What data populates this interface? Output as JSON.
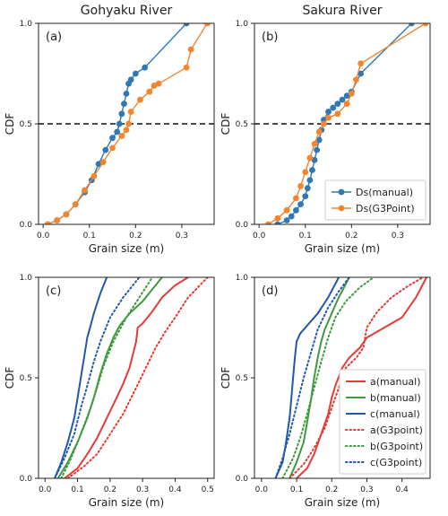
{
  "colors": {
    "blue": "#2f78b3",
    "orange": "#f28530",
    "red": "#e53b36",
    "green": "#3e9a3e",
    "navy": "#2257b0"
  },
  "chart_data": [
    {
      "id": "a",
      "type": "line",
      "panel_label": "(a)",
      "title": "Gohyaku River",
      "xlabel": "Grain size (m)",
      "ylabel": "CDF",
      "xlim": [
        -0.01,
        0.37
      ],
      "ylim": [
        0,
        1
      ],
      "xticks": [
        "0.0",
        "0.1",
        "0.2",
        "0.3"
      ],
      "xtick_values": [
        0,
        0.1,
        0.2,
        0.3
      ],
      "yticks": [
        "0.0",
        "0.5",
        "1.0"
      ],
      "ytick_values": [
        0,
        0.5,
        1
      ],
      "hline": 0.5,
      "legend": "",
      "series": [
        {
          "name": "Ds(manual)",
          "color": "blue",
          "dash": "solid",
          "marker": true,
          "x": [
            0.01,
            0.03,
            0.05,
            0.07,
            0.09,
            0.105,
            0.12,
            0.135,
            0.15,
            0.16,
            0.165,
            0.17,
            0.175,
            0.18,
            0.185,
            0.19,
            0.2,
            0.22,
            0.31
          ],
          "y": [
            0.0,
            0.02,
            0.05,
            0.1,
            0.16,
            0.22,
            0.3,
            0.37,
            0.43,
            0.46,
            0.5,
            0.55,
            0.6,
            0.65,
            0.7,
            0.72,
            0.75,
            0.78,
            1.0
          ]
        },
        {
          "name": "Ds(G3Point)",
          "color": "orange",
          "dash": "solid",
          "marker": true,
          "x": [
            0.01,
            0.03,
            0.05,
            0.07,
            0.09,
            0.11,
            0.13,
            0.15,
            0.17,
            0.18,
            0.185,
            0.19,
            0.21,
            0.23,
            0.24,
            0.25,
            0.31,
            0.32,
            0.355
          ],
          "y": [
            0.0,
            0.02,
            0.05,
            0.1,
            0.17,
            0.24,
            0.31,
            0.38,
            0.44,
            0.47,
            0.5,
            0.56,
            0.62,
            0.66,
            0.69,
            0.7,
            0.78,
            0.87,
            1.0
          ]
        }
      ]
    },
    {
      "id": "b",
      "type": "line",
      "panel_label": "(b)",
      "title": "Sakura River",
      "xlabel": "Grain size (m)",
      "ylabel": "CDF",
      "xlim": [
        -0.01,
        0.37
      ],
      "ylim": [
        0,
        1
      ],
      "xticks": [
        "0.0",
        "0.1",
        "0.2",
        "0.3"
      ],
      "xtick_values": [
        0,
        0.1,
        0.2,
        0.3
      ],
      "yticks": [
        "0.0",
        "0.5",
        "1.0"
      ],
      "ytick_values": [
        0,
        0.5,
        1
      ],
      "hline": 0.5,
      "legend": "lower right",
      "series": [
        {
          "name": "Ds(manual)",
          "color": "blue",
          "dash": "solid",
          "marker": true,
          "x": [
            0.04,
            0.06,
            0.07,
            0.08,
            0.09,
            0.1,
            0.105,
            0.11,
            0.115,
            0.12,
            0.125,
            0.13,
            0.135,
            0.14,
            0.15,
            0.16,
            0.17,
            0.18,
            0.19,
            0.2,
            0.22,
            0.33
          ],
          "y": [
            0.0,
            0.02,
            0.04,
            0.07,
            0.1,
            0.14,
            0.18,
            0.22,
            0.27,
            0.32,
            0.37,
            0.42,
            0.47,
            0.52,
            0.56,
            0.58,
            0.6,
            0.62,
            0.64,
            0.66,
            0.75,
            1.0
          ]
        },
        {
          "name": "Ds(G3Point)",
          "color": "orange",
          "dash": "solid",
          "marker": true,
          "x": [
            0.02,
            0.04,
            0.06,
            0.08,
            0.09,
            0.1,
            0.11,
            0.12,
            0.13,
            0.14,
            0.15,
            0.17,
            0.19,
            0.2,
            0.21,
            0.22,
            0.36
          ],
          "y": [
            0.0,
            0.03,
            0.07,
            0.13,
            0.19,
            0.26,
            0.33,
            0.4,
            0.46,
            0.5,
            0.53,
            0.55,
            0.6,
            0.65,
            0.72,
            0.8,
            1.0
          ]
        }
      ]
    },
    {
      "id": "c",
      "type": "line",
      "panel_label": "(c)",
      "title": "",
      "xlabel": "Grain size (m)",
      "ylabel": "CDF",
      "xlim": [
        -0.02,
        0.52
      ],
      "ylim": [
        0,
        1
      ],
      "xticks": [
        "0.0",
        "0.1",
        "0.2",
        "0.3",
        "0.4",
        "0.5"
      ],
      "xtick_values": [
        0,
        0.1,
        0.2,
        0.3,
        0.4,
        0.5
      ],
      "yticks": [
        "0.0",
        "0.5",
        "1.0"
      ],
      "ytick_values": [
        0,
        0.5,
        1
      ],
      "hline": null,
      "legend": "",
      "series": [
        {
          "name": "a(manual)",
          "color": "red",
          "dash": "solid",
          "marker": false,
          "x": [
            0.06,
            0.1,
            0.13,
            0.16,
            0.19,
            0.22,
            0.24,
            0.26,
            0.28,
            0.285,
            0.3,
            0.33,
            0.36,
            0.4,
            0.44
          ],
          "y": [
            0.0,
            0.05,
            0.12,
            0.2,
            0.3,
            0.4,
            0.47,
            0.55,
            0.68,
            0.75,
            0.77,
            0.83,
            0.9,
            0.96,
            1.0
          ]
        },
        {
          "name": "b(manual)",
          "color": "green",
          "dash": "solid",
          "marker": false,
          "x": [
            0.04,
            0.07,
            0.1,
            0.13,
            0.15,
            0.17,
            0.19,
            0.21,
            0.23,
            0.26,
            0.3,
            0.33,
            0.36
          ],
          "y": [
            0.0,
            0.08,
            0.18,
            0.3,
            0.4,
            0.52,
            0.62,
            0.7,
            0.76,
            0.82,
            0.88,
            0.94,
            1.0
          ]
        },
        {
          "name": "c(manual)",
          "color": "navy",
          "dash": "solid",
          "marker": false,
          "x": [
            0.03,
            0.05,
            0.07,
            0.09,
            0.1,
            0.11,
            0.12,
            0.13,
            0.14,
            0.15,
            0.17,
            0.19
          ],
          "y": [
            0.0,
            0.08,
            0.18,
            0.3,
            0.4,
            0.5,
            0.6,
            0.7,
            0.76,
            0.82,
            0.92,
            1.0
          ]
        },
        {
          "name": "a(G3point)",
          "color": "red",
          "dash": "dotted",
          "marker": false,
          "x": [
            0.07,
            0.12,
            0.16,
            0.2,
            0.24,
            0.28,
            0.31,
            0.34,
            0.37,
            0.4,
            0.44,
            0.5
          ],
          "y": [
            0.0,
            0.06,
            0.12,
            0.22,
            0.32,
            0.45,
            0.55,
            0.65,
            0.73,
            0.8,
            0.9,
            1.0
          ]
        },
        {
          "name": "b(G3point)",
          "color": "green",
          "dash": "dotted",
          "marker": false,
          "x": [
            0.05,
            0.08,
            0.11,
            0.14,
            0.16,
            0.18,
            0.21,
            0.25,
            0.29,
            0.33
          ],
          "y": [
            0.0,
            0.1,
            0.22,
            0.35,
            0.45,
            0.56,
            0.68,
            0.8,
            0.9,
            1.0
          ]
        },
        {
          "name": "c(G3point)",
          "color": "navy",
          "dash": "dotted",
          "marker": false,
          "x": [
            0.03,
            0.06,
            0.09,
            0.11,
            0.13,
            0.15,
            0.17,
            0.2,
            0.24,
            0.29
          ],
          "y": [
            0.0,
            0.1,
            0.22,
            0.35,
            0.46,
            0.58,
            0.68,
            0.8,
            0.9,
            1.0
          ]
        }
      ]
    },
    {
      "id": "d",
      "type": "line",
      "panel_label": "(d)",
      "title": "",
      "xlabel": "Grain size (m)",
      "ylabel": "CDF",
      "xlim": [
        -0.02,
        0.48
      ],
      "ylim": [
        0,
        1
      ],
      "xticks": [
        "0.0",
        "0.1",
        "0.2",
        "0.3",
        "0.4"
      ],
      "xtick_values": [
        0,
        0.1,
        0.2,
        0.3,
        0.4
      ],
      "yticks": [
        "0.0",
        "0.5",
        "1.0"
      ],
      "ytick_values": [
        0,
        0.5,
        1
      ],
      "hline": null,
      "legend": "lower right",
      "series": [
        {
          "name": "a(manual)",
          "color": "red",
          "dash": "solid",
          "marker": false,
          "x": [
            0.1,
            0.13,
            0.15,
            0.17,
            0.19,
            0.2,
            0.21,
            0.23,
            0.25,
            0.28,
            0.3,
            0.35,
            0.4,
            0.44,
            0.47
          ],
          "y": [
            0.0,
            0.05,
            0.12,
            0.22,
            0.32,
            0.4,
            0.46,
            0.55,
            0.6,
            0.65,
            0.7,
            0.75,
            0.8,
            0.9,
            1.0
          ]
        },
        {
          "name": "b(manual)",
          "color": "green",
          "dash": "solid",
          "marker": false,
          "x": [
            0.08,
            0.1,
            0.12,
            0.13,
            0.14,
            0.15,
            0.16,
            0.17,
            0.18,
            0.2,
            0.22,
            0.25
          ],
          "y": [
            0.0,
            0.08,
            0.18,
            0.28,
            0.38,
            0.5,
            0.6,
            0.68,
            0.74,
            0.82,
            0.9,
            1.0
          ]
        },
        {
          "name": "c(manual)",
          "color": "navy",
          "dash": "solid",
          "marker": false,
          "x": [
            0.04,
            0.06,
            0.07,
            0.08,
            0.085,
            0.09,
            0.095,
            0.1,
            0.11,
            0.13,
            0.16,
            0.19,
            0.22
          ],
          "y": [
            0.0,
            0.08,
            0.18,
            0.3,
            0.4,
            0.5,
            0.6,
            0.68,
            0.72,
            0.76,
            0.82,
            0.9,
            1.0
          ]
        },
        {
          "name": "a(G3point)",
          "color": "red",
          "dash": "dotted",
          "marker": false,
          "x": [
            0.08,
            0.12,
            0.15,
            0.18,
            0.2,
            0.22,
            0.24,
            0.27,
            0.29,
            0.3,
            0.33,
            0.37,
            0.42,
            0.46
          ],
          "y": [
            0.0,
            0.07,
            0.15,
            0.25,
            0.35,
            0.45,
            0.55,
            0.6,
            0.65,
            0.75,
            0.83,
            0.9,
            0.96,
            1.0
          ]
        },
        {
          "name": "b(G3point)",
          "color": "green",
          "dash": "dotted",
          "marker": false,
          "x": [
            0.06,
            0.09,
            0.11,
            0.13,
            0.15,
            0.17,
            0.19,
            0.21,
            0.24,
            0.28,
            0.32
          ],
          "y": [
            0.0,
            0.1,
            0.2,
            0.32,
            0.45,
            0.58,
            0.7,
            0.8,
            0.88,
            0.95,
            1.0
          ]
        },
        {
          "name": "c(G3point)",
          "color": "navy",
          "dash": "dotted",
          "marker": false,
          "x": [
            0.04,
            0.06,
            0.08,
            0.1,
            0.12,
            0.14,
            0.16,
            0.19,
            0.22,
            0.25
          ],
          "y": [
            0.0,
            0.1,
            0.22,
            0.36,
            0.5,
            0.62,
            0.74,
            0.85,
            0.93,
            1.0
          ]
        }
      ]
    }
  ]
}
